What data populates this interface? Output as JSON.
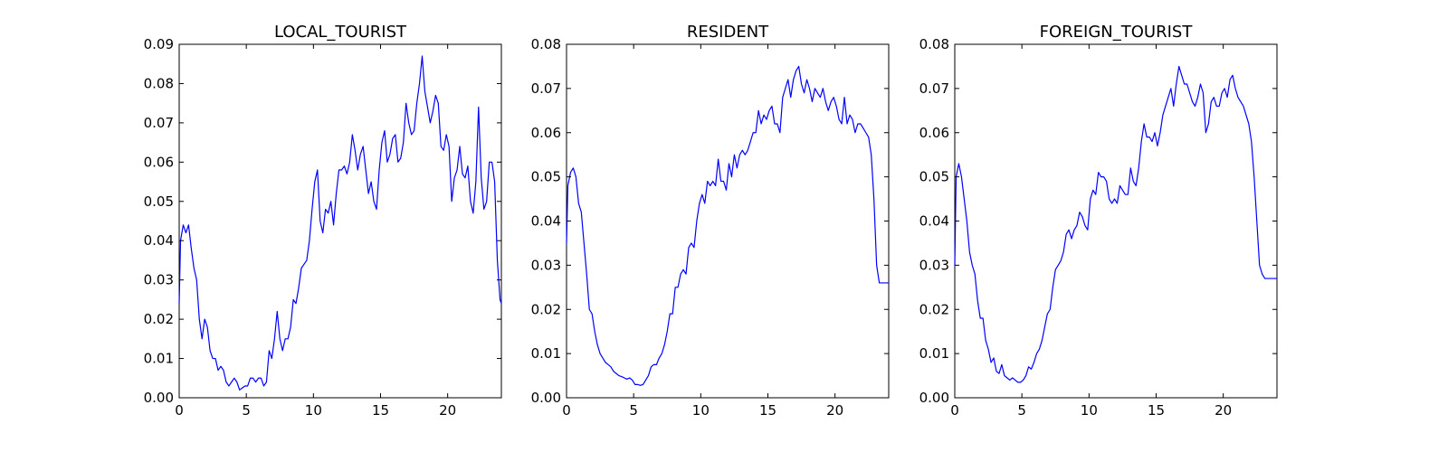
{
  "colors": {
    "series": "#0000ff",
    "axes": "#000000",
    "background": "#ffffff"
  },
  "chart_data": [
    {
      "type": "line",
      "title": "LOCAL_TOURIST",
      "xlabel": "",
      "ylabel": "",
      "xlim": [
        0,
        24
      ],
      "ylim": [
        0,
        0.09
      ],
      "xticks": [
        0,
        5,
        10,
        15,
        20
      ],
      "xtick_labels": [
        "0",
        "5",
        "10",
        "15",
        "20"
      ],
      "yticks": [
        0,
        0.01,
        0.02,
        0.03,
        0.04,
        0.05,
        0.06,
        0.07,
        0.08,
        0.09
      ],
      "ytick_labels": [
        "0.00",
        "0.01",
        "0.02",
        "0.03",
        "0.04",
        "0.05",
        "0.06",
        "0.07",
        "0.08",
        "0.09"
      ],
      "grid": false,
      "series": [
        {
          "x": [
            0,
            0.1,
            0.3,
            0.5,
            0.7,
            0.9,
            1.1,
            1.3,
            1.5,
            1.7,
            1.9,
            2.1,
            2.3,
            2.5,
            2.7,
            2.9,
            3.1,
            3.3,
            3.5,
            3.7,
            3.9,
            4.1,
            4.3,
            4.5,
            4.7,
            4.9,
            5.1,
            5.3,
            5.5,
            5.7,
            5.9,
            6.1,
            6.3,
            6.5,
            6.7,
            6.9,
            7.1,
            7.3,
            7.5,
            7.7,
            7.9,
            8.1,
            8.3,
            8.5,
            8.7,
            8.9,
            9.1,
            9.3,
            9.5,
            9.7,
            9.9,
            10.1,
            10.3,
            10.5,
            10.7,
            10.9,
            11.1,
            11.3,
            11.5,
            11.7,
            11.9,
            12.1,
            12.3,
            12.5,
            12.7,
            12.9,
            13.1,
            13.3,
            13.5,
            13.7,
            13.9,
            14.1,
            14.3,
            14.5,
            14.7,
            14.9,
            15.1,
            15.3,
            15.5,
            15.7,
            15.9,
            16.1,
            16.3,
            16.5,
            16.7,
            16.9,
            17.1,
            17.3,
            17.5,
            17.7,
            17.9,
            18.1,
            18.3,
            18.5,
            18.7,
            18.9,
            19.1,
            19.3,
            19.5,
            19.7,
            19.9,
            20.1,
            20.3,
            20.5,
            20.7,
            20.9,
            21.1,
            21.3,
            21.5,
            21.7,
            21.9,
            22.1,
            22.3,
            22.5,
            22.7,
            22.9,
            23.1,
            23.3,
            23.5,
            23.7,
            23.9,
            24
          ],
          "values": [
            0.024,
            0.04,
            0.044,
            0.042,
            0.044,
            0.038,
            0.033,
            0.03,
            0.02,
            0.015,
            0.02,
            0.018,
            0.012,
            0.01,
            0.01,
            0.007,
            0.008,
            0.007,
            0.004,
            0.003,
            0.004,
            0.005,
            0.004,
            0.002,
            0.0025,
            0.003,
            0.003,
            0.005,
            0.005,
            0.004,
            0.005,
            0.005,
            0.003,
            0.004,
            0.012,
            0.01,
            0.015,
            0.022,
            0.015,
            0.012,
            0.015,
            0.015,
            0.018,
            0.025,
            0.024,
            0.028,
            0.033,
            0.034,
            0.035,
            0.04,
            0.048,
            0.055,
            0.058,
            0.045,
            0.042,
            0.048,
            0.047,
            0.05,
            0.044,
            0.052,
            0.058,
            0.058,
            0.059,
            0.057,
            0.06,
            0.067,
            0.063,
            0.058,
            0.062,
            0.064,
            0.058,
            0.052,
            0.055,
            0.05,
            0.048,
            0.058,
            0.065,
            0.068,
            0.06,
            0.062,
            0.066,
            0.067,
            0.06,
            0.061,
            0.065,
            0.075,
            0.07,
            0.067,
            0.068,
            0.075,
            0.08,
            0.087,
            0.078,
            0.074,
            0.07,
            0.073,
            0.077,
            0.075,
            0.064,
            0.063,
            0.067,
            0.064,
            0.05,
            0.056,
            0.058,
            0.064,
            0.057,
            0.056,
            0.059,
            0.05,
            0.047,
            0.055,
            0.074,
            0.056,
            0.048,
            0.05,
            0.06,
            0.06,
            0.055,
            0.035,
            0.025,
            0.024
          ]
        }
      ]
    },
    {
      "type": "line",
      "title": "RESIDENT",
      "xlabel": "",
      "ylabel": "",
      "xlim": [
        0,
        24
      ],
      "ylim": [
        0,
        0.08
      ],
      "xticks": [
        0,
        5,
        10,
        15,
        20
      ],
      "xtick_labels": [
        "0",
        "5",
        "10",
        "15",
        "20"
      ],
      "yticks": [
        0,
        0.01,
        0.02,
        0.03,
        0.04,
        0.05,
        0.06,
        0.07,
        0.08
      ],
      "ytick_labels": [
        "0.00",
        "0.01",
        "0.02",
        "0.03",
        "0.04",
        "0.05",
        "0.06",
        "0.07",
        "0.08"
      ],
      "grid": false,
      "series": [
        {
          "x": [
            0,
            0.1,
            0.3,
            0.5,
            0.7,
            0.9,
            1.1,
            1.3,
            1.5,
            1.7,
            1.9,
            2.1,
            2.3,
            2.5,
            2.7,
            2.9,
            3.1,
            3.3,
            3.5,
            3.7,
            3.9,
            4.1,
            4.3,
            4.5,
            4.7,
            4.9,
            5.1,
            5.3,
            5.5,
            5.7,
            5.9,
            6.1,
            6.3,
            6.5,
            6.7,
            6.9,
            7.1,
            7.3,
            7.5,
            7.7,
            7.9,
            8.1,
            8.3,
            8.5,
            8.7,
            8.9,
            9.1,
            9.3,
            9.5,
            9.7,
            9.9,
            10.1,
            10.3,
            10.5,
            10.7,
            10.9,
            11.1,
            11.3,
            11.5,
            11.7,
            11.9,
            12.1,
            12.3,
            12.5,
            12.7,
            12.9,
            13.1,
            13.3,
            13.5,
            13.7,
            13.9,
            14.1,
            14.3,
            14.5,
            14.7,
            14.9,
            15.1,
            15.3,
            15.5,
            15.7,
            15.9,
            16.1,
            16.3,
            16.5,
            16.7,
            16.9,
            17.1,
            17.3,
            17.5,
            17.7,
            17.9,
            18.1,
            18.3,
            18.5,
            18.7,
            18.9,
            19.1,
            19.3,
            19.5,
            19.7,
            19.9,
            20.1,
            20.3,
            20.5,
            20.7,
            20.9,
            21.1,
            21.3,
            21.5,
            21.7,
            21.9,
            22.1,
            22.3,
            22.5,
            22.7,
            22.9,
            23.1,
            23.3,
            23.5,
            23.7,
            23.9,
            24
          ],
          "values": [
            0.035,
            0.048,
            0.051,
            0.052,
            0.05,
            0.044,
            0.042,
            0.035,
            0.028,
            0.02,
            0.019,
            0.015,
            0.012,
            0.01,
            0.009,
            0.008,
            0.0075,
            0.007,
            0.006,
            0.0055,
            0.005,
            0.0048,
            0.0045,
            0.0042,
            0.0045,
            0.004,
            0.003,
            0.003,
            0.0028,
            0.003,
            0.004,
            0.005,
            0.007,
            0.0075,
            0.0075,
            0.009,
            0.01,
            0.012,
            0.015,
            0.019,
            0.019,
            0.025,
            0.025,
            0.028,
            0.029,
            0.028,
            0.034,
            0.035,
            0.034,
            0.04,
            0.044,
            0.046,
            0.044,
            0.049,
            0.048,
            0.049,
            0.048,
            0.054,
            0.049,
            0.049,
            0.047,
            0.053,
            0.05,
            0.055,
            0.052,
            0.055,
            0.056,
            0.055,
            0.056,
            0.058,
            0.06,
            0.06,
            0.065,
            0.062,
            0.064,
            0.063,
            0.065,
            0.066,
            0.062,
            0.062,
            0.06,
            0.068,
            0.07,
            0.072,
            0.068,
            0.072,
            0.074,
            0.075,
            0.071,
            0.069,
            0.072,
            0.07,
            0.067,
            0.07,
            0.069,
            0.068,
            0.07,
            0.067,
            0.065,
            0.067,
            0.068,
            0.066,
            0.063,
            0.062,
            0.068,
            0.062,
            0.064,
            0.063,
            0.06,
            0.062,
            0.062,
            0.061,
            0.06,
            0.059,
            0.055,
            0.045,
            0.03,
            0.026,
            0.026,
            0.026,
            0.026,
            0.026
          ]
        }
      ]
    },
    {
      "type": "line",
      "title": "FOREIGN_TOURIST",
      "xlabel": "",
      "ylabel": "",
      "xlim": [
        0,
        24
      ],
      "ylim": [
        0,
        0.08
      ],
      "xticks": [
        0,
        5,
        10,
        15,
        20
      ],
      "xtick_labels": [
        "0",
        "5",
        "10",
        "15",
        "20"
      ],
      "yticks": [
        0,
        0.01,
        0.02,
        0.03,
        0.04,
        0.05,
        0.06,
        0.07,
        0.08
      ],
      "ytick_labels": [
        "0.00",
        "0.01",
        "0.02",
        "0.03",
        "0.04",
        "0.05",
        "0.06",
        "0.07",
        "0.08"
      ],
      "grid": false,
      "series": [
        {
          "x": [
            0,
            0.1,
            0.3,
            0.5,
            0.7,
            0.9,
            1.1,
            1.3,
            1.5,
            1.7,
            1.9,
            2.1,
            2.3,
            2.5,
            2.7,
            2.9,
            3.1,
            3.3,
            3.5,
            3.7,
            3.9,
            4.1,
            4.3,
            4.5,
            4.7,
            4.9,
            5.1,
            5.3,
            5.5,
            5.7,
            5.9,
            6.1,
            6.3,
            6.5,
            6.7,
            6.9,
            7.1,
            7.3,
            7.5,
            7.7,
            7.9,
            8.1,
            8.3,
            8.5,
            8.7,
            8.9,
            9.1,
            9.3,
            9.5,
            9.7,
            9.9,
            10.1,
            10.3,
            10.5,
            10.7,
            10.9,
            11.1,
            11.3,
            11.5,
            11.7,
            11.9,
            12.1,
            12.3,
            12.5,
            12.7,
            12.9,
            13.1,
            13.3,
            13.5,
            13.7,
            13.9,
            14.1,
            14.3,
            14.5,
            14.7,
            14.9,
            15.1,
            15.3,
            15.5,
            15.7,
            15.9,
            16.1,
            16.3,
            16.5,
            16.7,
            16.9,
            17.1,
            17.3,
            17.5,
            17.7,
            17.9,
            18.1,
            18.3,
            18.5,
            18.7,
            18.9,
            19.1,
            19.3,
            19.5,
            19.7,
            19.9,
            20.1,
            20.3,
            20.5,
            20.7,
            20.9,
            21.1,
            21.3,
            21.5,
            21.7,
            21.9,
            22.1,
            22.3,
            22.5,
            22.7,
            22.9,
            23.1,
            23.3,
            23.5,
            23.7,
            23.9,
            24
          ],
          "values": [
            0.03,
            0.05,
            0.053,
            0.05,
            0.045,
            0.04,
            0.033,
            0.03,
            0.028,
            0.022,
            0.018,
            0.018,
            0.013,
            0.011,
            0.008,
            0.009,
            0.006,
            0.0055,
            0.0075,
            0.005,
            0.0045,
            0.004,
            0.0045,
            0.004,
            0.0035,
            0.0035,
            0.004,
            0.005,
            0.007,
            0.0065,
            0.008,
            0.01,
            0.011,
            0.013,
            0.016,
            0.019,
            0.02,
            0.025,
            0.029,
            0.03,
            0.031,
            0.033,
            0.037,
            0.038,
            0.036,
            0.038,
            0.039,
            0.042,
            0.041,
            0.039,
            0.038,
            0.045,
            0.047,
            0.046,
            0.051,
            0.05,
            0.05,
            0.049,
            0.045,
            0.044,
            0.045,
            0.044,
            0.048,
            0.047,
            0.046,
            0.046,
            0.052,
            0.049,
            0.048,
            0.052,
            0.058,
            0.062,
            0.059,
            0.059,
            0.058,
            0.06,
            0.057,
            0.06,
            0.064,
            0.066,
            0.068,
            0.07,
            0.066,
            0.071,
            0.075,
            0.073,
            0.071,
            0.071,
            0.069,
            0.067,
            0.066,
            0.068,
            0.071,
            0.069,
            0.06,
            0.062,
            0.067,
            0.068,
            0.066,
            0.066,
            0.069,
            0.07,
            0.068,
            0.072,
            0.073,
            0.07,
            0.068,
            0.067,
            0.066,
            0.064,
            0.062,
            0.058,
            0.05,
            0.04,
            0.03,
            0.028,
            0.027,
            0.027,
            0.027,
            0.027,
            0.027,
            0.027
          ]
        }
      ]
    }
  ]
}
